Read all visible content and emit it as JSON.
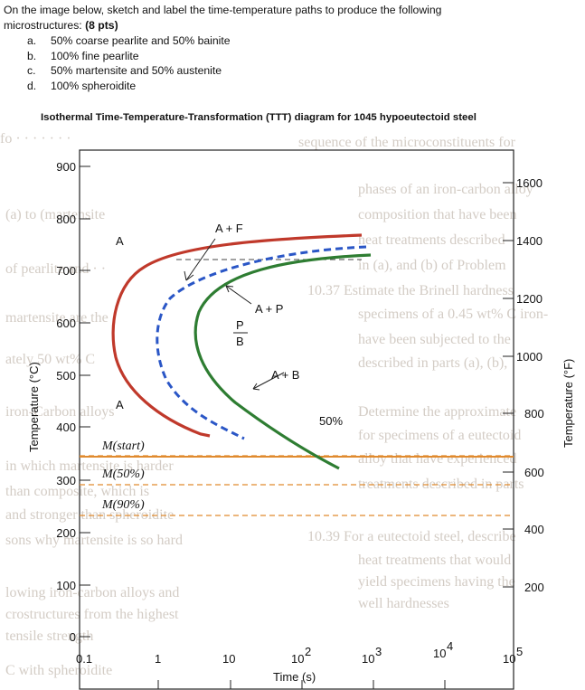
{
  "question": {
    "line1": "On the image below, sketch and label the time-temperature paths to produce the following",
    "line2_prefix": "microstructures: ",
    "line2_pts": "(8 pts)",
    "items": [
      {
        "letter": "a.",
        "text": "50% coarse pearlite and 50% bainite"
      },
      {
        "letter": "b.",
        "text": "100% fine pearlite"
      },
      {
        "letter": "c.",
        "text": "50% martensite and 50% austenite"
      },
      {
        "letter": "d.",
        "text": "100% spheroidite"
      }
    ]
  },
  "diagram": {
    "title": "Isothermal Time-Temperature-Transformation (TTT) diagram for 1045 hypoeutectoid steel",
    "ylabel_left": "Temperature (°C)",
    "ylabel_right": "Temperature (°F)",
    "xlabel": "Time (s)",
    "c_ticks": [
      "900",
      "800",
      "700",
      "600",
      "500",
      "400",
      "300",
      "200",
      "100",
      "0"
    ],
    "f_ticks": [
      "1600",
      "1400",
      "1200",
      "1000",
      "800",
      "600",
      "400",
      "200"
    ],
    "x_ticks": {
      "t01": "0.1",
      "t1": "1",
      "t10": "10",
      "t100_base": "10",
      "t100_exp": "2",
      "t1000_base": "10",
      "t1000_exp": "3",
      "t10000_base": "10",
      "t10000_exp": "4",
      "t100000_base": "10",
      "t100000_exp": "5"
    },
    "regions": {
      "a_top": "A",
      "a_plus_f": "A + F",
      "a_plus_p": "A + P",
      "p": "P",
      "b": "B",
      "a_plus_b": "A + B",
      "a_low": "A",
      "fifty": "50%",
      "m_start": "M(start)",
      "m_50": "M(50%)",
      "m_90": "M(90%)"
    },
    "colors": {
      "red": "#c0392b",
      "green": "#2e7d32",
      "blue": "#2a56c6",
      "dashed": "#e08a2e",
      "grid": "#8d8d8d"
    }
  }
}
